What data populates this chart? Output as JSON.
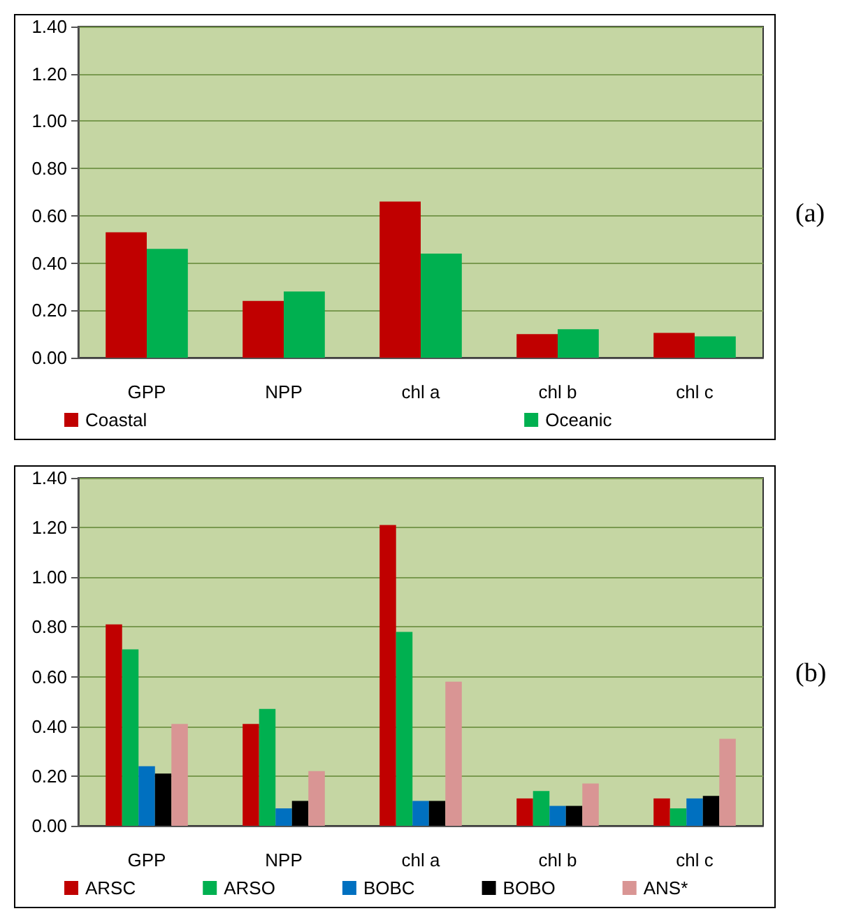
{
  "chart_data": [
    {
      "type": "bar",
      "annotations": [
        "(a)"
      ],
      "categories": [
        "GPP",
        "NPP",
        "chl a",
        "chl b",
        "chl c"
      ],
      "series": [
        {
          "name": "Coastal",
          "color": "#c00000",
          "values": [
            0.53,
            0.24,
            0.66,
            0.1,
            0.105
          ]
        },
        {
          "name": "Oceanic",
          "color": "#00b050",
          "values": [
            0.46,
            0.28,
            0.44,
            0.12,
            0.09
          ]
        }
      ],
      "ylim": [
        0,
        1.4
      ],
      "yticks": [
        {
          "value": 0,
          "label": "0.00"
        },
        {
          "value": 0.2,
          "label": "0.20"
        },
        {
          "value": 0.4,
          "label": "0.40"
        },
        {
          "value": 0.6,
          "label": "0.60"
        },
        {
          "value": 0.8,
          "label": "0.80"
        },
        {
          "value": 1.0,
          "label": "1.00"
        },
        {
          "value": 1.2,
          "label": "1.20"
        },
        {
          "value": 1.4,
          "label": "1.40"
        }
      ],
      "grid": true,
      "legend": "bottom"
    },
    {
      "type": "bar",
      "annotations": [
        "(b)"
      ],
      "categories": [
        "GPP",
        "NPP",
        "chl a",
        "chl b",
        "chl c"
      ],
      "series": [
        {
          "name": "ARSC",
          "color": "#c00000",
          "values": [
            0.81,
            0.41,
            1.21,
            0.11,
            0.11
          ]
        },
        {
          "name": "ARSO",
          "color": "#00b050",
          "values": [
            0.71,
            0.47,
            0.78,
            0.14,
            0.07
          ]
        },
        {
          "name": "BOBC",
          "color": "#0070c0",
          "values": [
            0.24,
            0.07,
            0.1,
            0.08,
            0.11
          ]
        },
        {
          "name": "BOBO",
          "color": "#000000",
          "values": [
            0.21,
            0.1,
            0.1,
            0.08,
            0.12
          ]
        },
        {
          "name": "ANS*",
          "color": "#d99594",
          "values": [
            0.41,
            0.22,
            0.58,
            0.17,
            0.35
          ]
        }
      ],
      "ylim": [
        0,
        1.4
      ],
      "yticks": [
        {
          "value": 0,
          "label": "0.00"
        },
        {
          "value": 0.2,
          "label": "0.20"
        },
        {
          "value": 0.4,
          "label": "0.40"
        },
        {
          "value": 0.6,
          "label": "0.60"
        },
        {
          "value": 0.8,
          "label": "0.80"
        },
        {
          "value": 1.0,
          "label": "1.00"
        },
        {
          "value": 1.2,
          "label": "1.20"
        },
        {
          "value": 1.4,
          "label": "1.40"
        }
      ],
      "grid": true,
      "legend": "bottom"
    }
  ]
}
